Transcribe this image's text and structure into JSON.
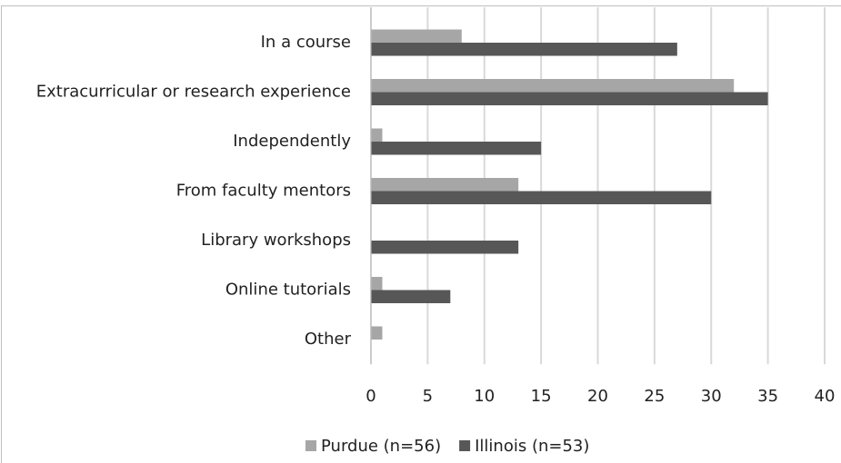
{
  "chart_data": {
    "type": "bar",
    "orientation": "horizontal",
    "categories": [
      "In a course",
      "Extracurricular or research experience",
      "Independently",
      "From faculty mentors",
      "Library workshops",
      "Online tutorials",
      "Other"
    ],
    "series": [
      {
        "name": "Purdue (n=56)",
        "color": "#a6a6a6",
        "values": [
          8,
          32,
          1,
          13,
          0,
          1,
          1
        ]
      },
      {
        "name": "Illinois (n=53)",
        "color": "#575757",
        "values": [
          27,
          35,
          15,
          30,
          13,
          7,
          0
        ]
      }
    ],
    "xlim": [
      0,
      40
    ],
    "xticks": [
      0,
      5,
      10,
      15,
      20,
      25,
      30,
      35,
      40
    ],
    "grid": true,
    "legend": "bottom"
  }
}
